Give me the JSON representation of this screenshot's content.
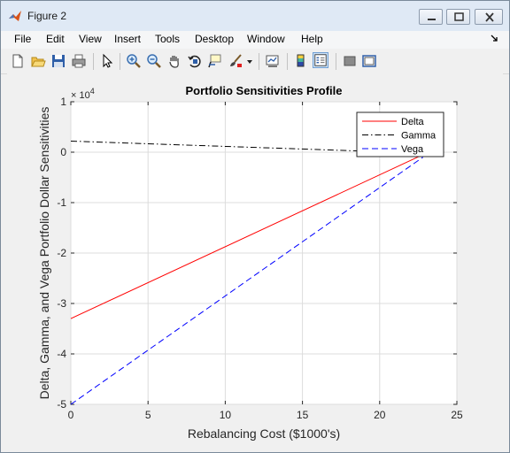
{
  "window": {
    "title": "Figure 2",
    "controls": {
      "minimize": "minimize",
      "maximize": "maximize",
      "close": "close"
    }
  },
  "menubar": {
    "items": [
      "File",
      "Edit",
      "View",
      "Insert",
      "Tools",
      "Desktop",
      "Window",
      "Help"
    ]
  },
  "toolbar": {
    "icons": [
      "new-figure-icon",
      "open-file-icon",
      "save-icon",
      "print-icon",
      "arrow-pointer-icon",
      "zoom-in-icon",
      "zoom-out-icon",
      "pan-hand-icon",
      "rotate-3d-icon",
      "data-cursor-icon",
      "brush-icon",
      "dropdown-arrow-icon",
      "link-plot-icon",
      "colorbar-icon",
      "legend-icon",
      "hide-plot-tools-icon",
      "show-plot-tools-icon"
    ]
  },
  "chart_data": {
    "type": "line",
    "title": "Portfolio Sensitivities Profile",
    "xlabel": "Rebalancing Cost ($1000's)",
    "ylabel": "Delta, Gamma, and Vega Portfolio Dollar Sensitivities",
    "y_exponent": "× 10",
    "y_exponent_power": "4",
    "xlim": [
      0,
      25
    ],
    "ylim": [
      -5,
      1
    ],
    "x_ticks": [
      "0",
      "5",
      "10",
      "15",
      "20",
      "25"
    ],
    "y_ticks": [
      "1",
      "0",
      "-1",
      "-2",
      "-3",
      "-4",
      "-5"
    ],
    "grid": true,
    "legend_position": "top-right",
    "series": [
      {
        "name": "Delta",
        "color": "#ff0000",
        "style": "solid",
        "x": [
          0,
          22.8
        ],
        "y": [
          -3.3,
          -0.05
        ]
      },
      {
        "name": "Gamma",
        "color": "#000000",
        "style": "dash-dot",
        "x": [
          0,
          22.8
        ],
        "y": [
          0.22,
          -0.02
        ]
      },
      {
        "name": "Vega",
        "color": "#0000ff",
        "style": "dashed",
        "x": [
          0,
          22.8
        ],
        "y": [
          -5.0,
          -0.1
        ]
      }
    ]
  }
}
